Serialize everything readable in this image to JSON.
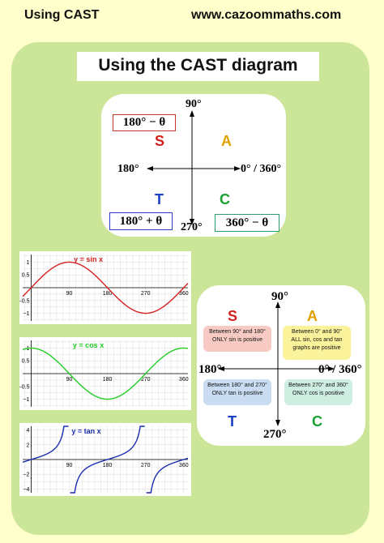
{
  "header": {
    "left": "Using CAST",
    "right": "www.cazoommaths.com"
  },
  "title": "Using the CAST diagram",
  "top_diagram": {
    "angle_top": "90°",
    "angle_left": "180°",
    "angle_right": "0° / 360°",
    "angle_bottom": "270°",
    "quadrant_S": "S",
    "quadrant_A": "A",
    "quadrant_T": "T",
    "quadrant_C": "C",
    "formula_S": "180° − θ",
    "formula_T": "180° + θ",
    "formula_C": "360° − θ",
    "color_S": "#c0392b",
    "color_T": "#2a3bd1",
    "color_C": "#2e9c6a"
  },
  "bottom_diagram": {
    "angle_top": "90°",
    "angle_left": "180°",
    "angle_right": "0° / 360°",
    "angle_bottom": "270°",
    "quadrant_S": "S",
    "quadrant_A": "A",
    "quadrant_T": "T",
    "quadrant_C": "C",
    "box_S": {
      "line1": "Between 90° and 180°",
      "line2": "ONLY sin is positive",
      "color": "#f7cbc4"
    },
    "box_A": {
      "line1": "Between 0° and 90°",
      "line2": "ALL sin, cos and tan",
      "line3": "graphs are positive",
      "color": "#fbf39c"
    },
    "box_T": {
      "line1": "Between 180° and 270°",
      "line2": "ONLY tan is positive",
      "color": "#c9dcf2"
    },
    "box_C": {
      "line1": "Between 270° and 360°",
      "line2": "ONLY cos is positive",
      "color": "#cdeee0"
    }
  },
  "graphs": {
    "sin": {
      "title": "y = sin x",
      "color": "#d42020",
      "x_ticks": [
        "90",
        "180",
        "270",
        "360"
      ],
      "y_ticks": [
        "1",
        "0.5",
        "−0.5",
        "−1"
      ],
      "xlim": [
        -20,
        370
      ],
      "ylim": [
        -1.3,
        1.3
      ]
    },
    "cos": {
      "title": "y = cos x",
      "color": "#22cc22",
      "x_ticks": [
        "90",
        "180",
        "270",
        "360"
      ],
      "y_ticks": [
        "1",
        "0.5",
        "−0.5",
        "−1"
      ],
      "xlim": [
        -20,
        370
      ],
      "ylim": [
        -1.3,
        1.3
      ]
    },
    "tan": {
      "title": "y = tan x",
      "color": "#1a2db0",
      "x_ticks": [
        "90",
        "180",
        "270",
        "360"
      ],
      "y_ticks": [
        "4",
        "2",
        "−2",
        "−4"
      ],
      "xlim": [
        -20,
        370
      ],
      "ylim": [
        -4.5,
        4.5
      ]
    }
  }
}
